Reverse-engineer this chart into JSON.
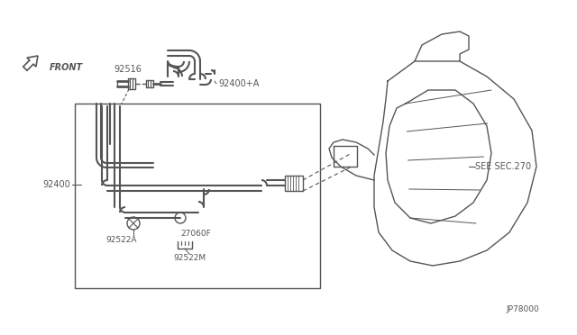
{
  "bg_color": "#ffffff",
  "line_color": "#555555",
  "figsize": [
    6.4,
    3.72
  ],
  "dpi": 100,
  "labels": {
    "front": "FRONT",
    "92516": "92516",
    "92400A": "92400+A",
    "92400": "92400",
    "27060F": "27060F",
    "92522A": "92522A",
    "92522M": "92522M",
    "see_sec": "SEE SEC.270",
    "part_num": "JP78000"
  }
}
